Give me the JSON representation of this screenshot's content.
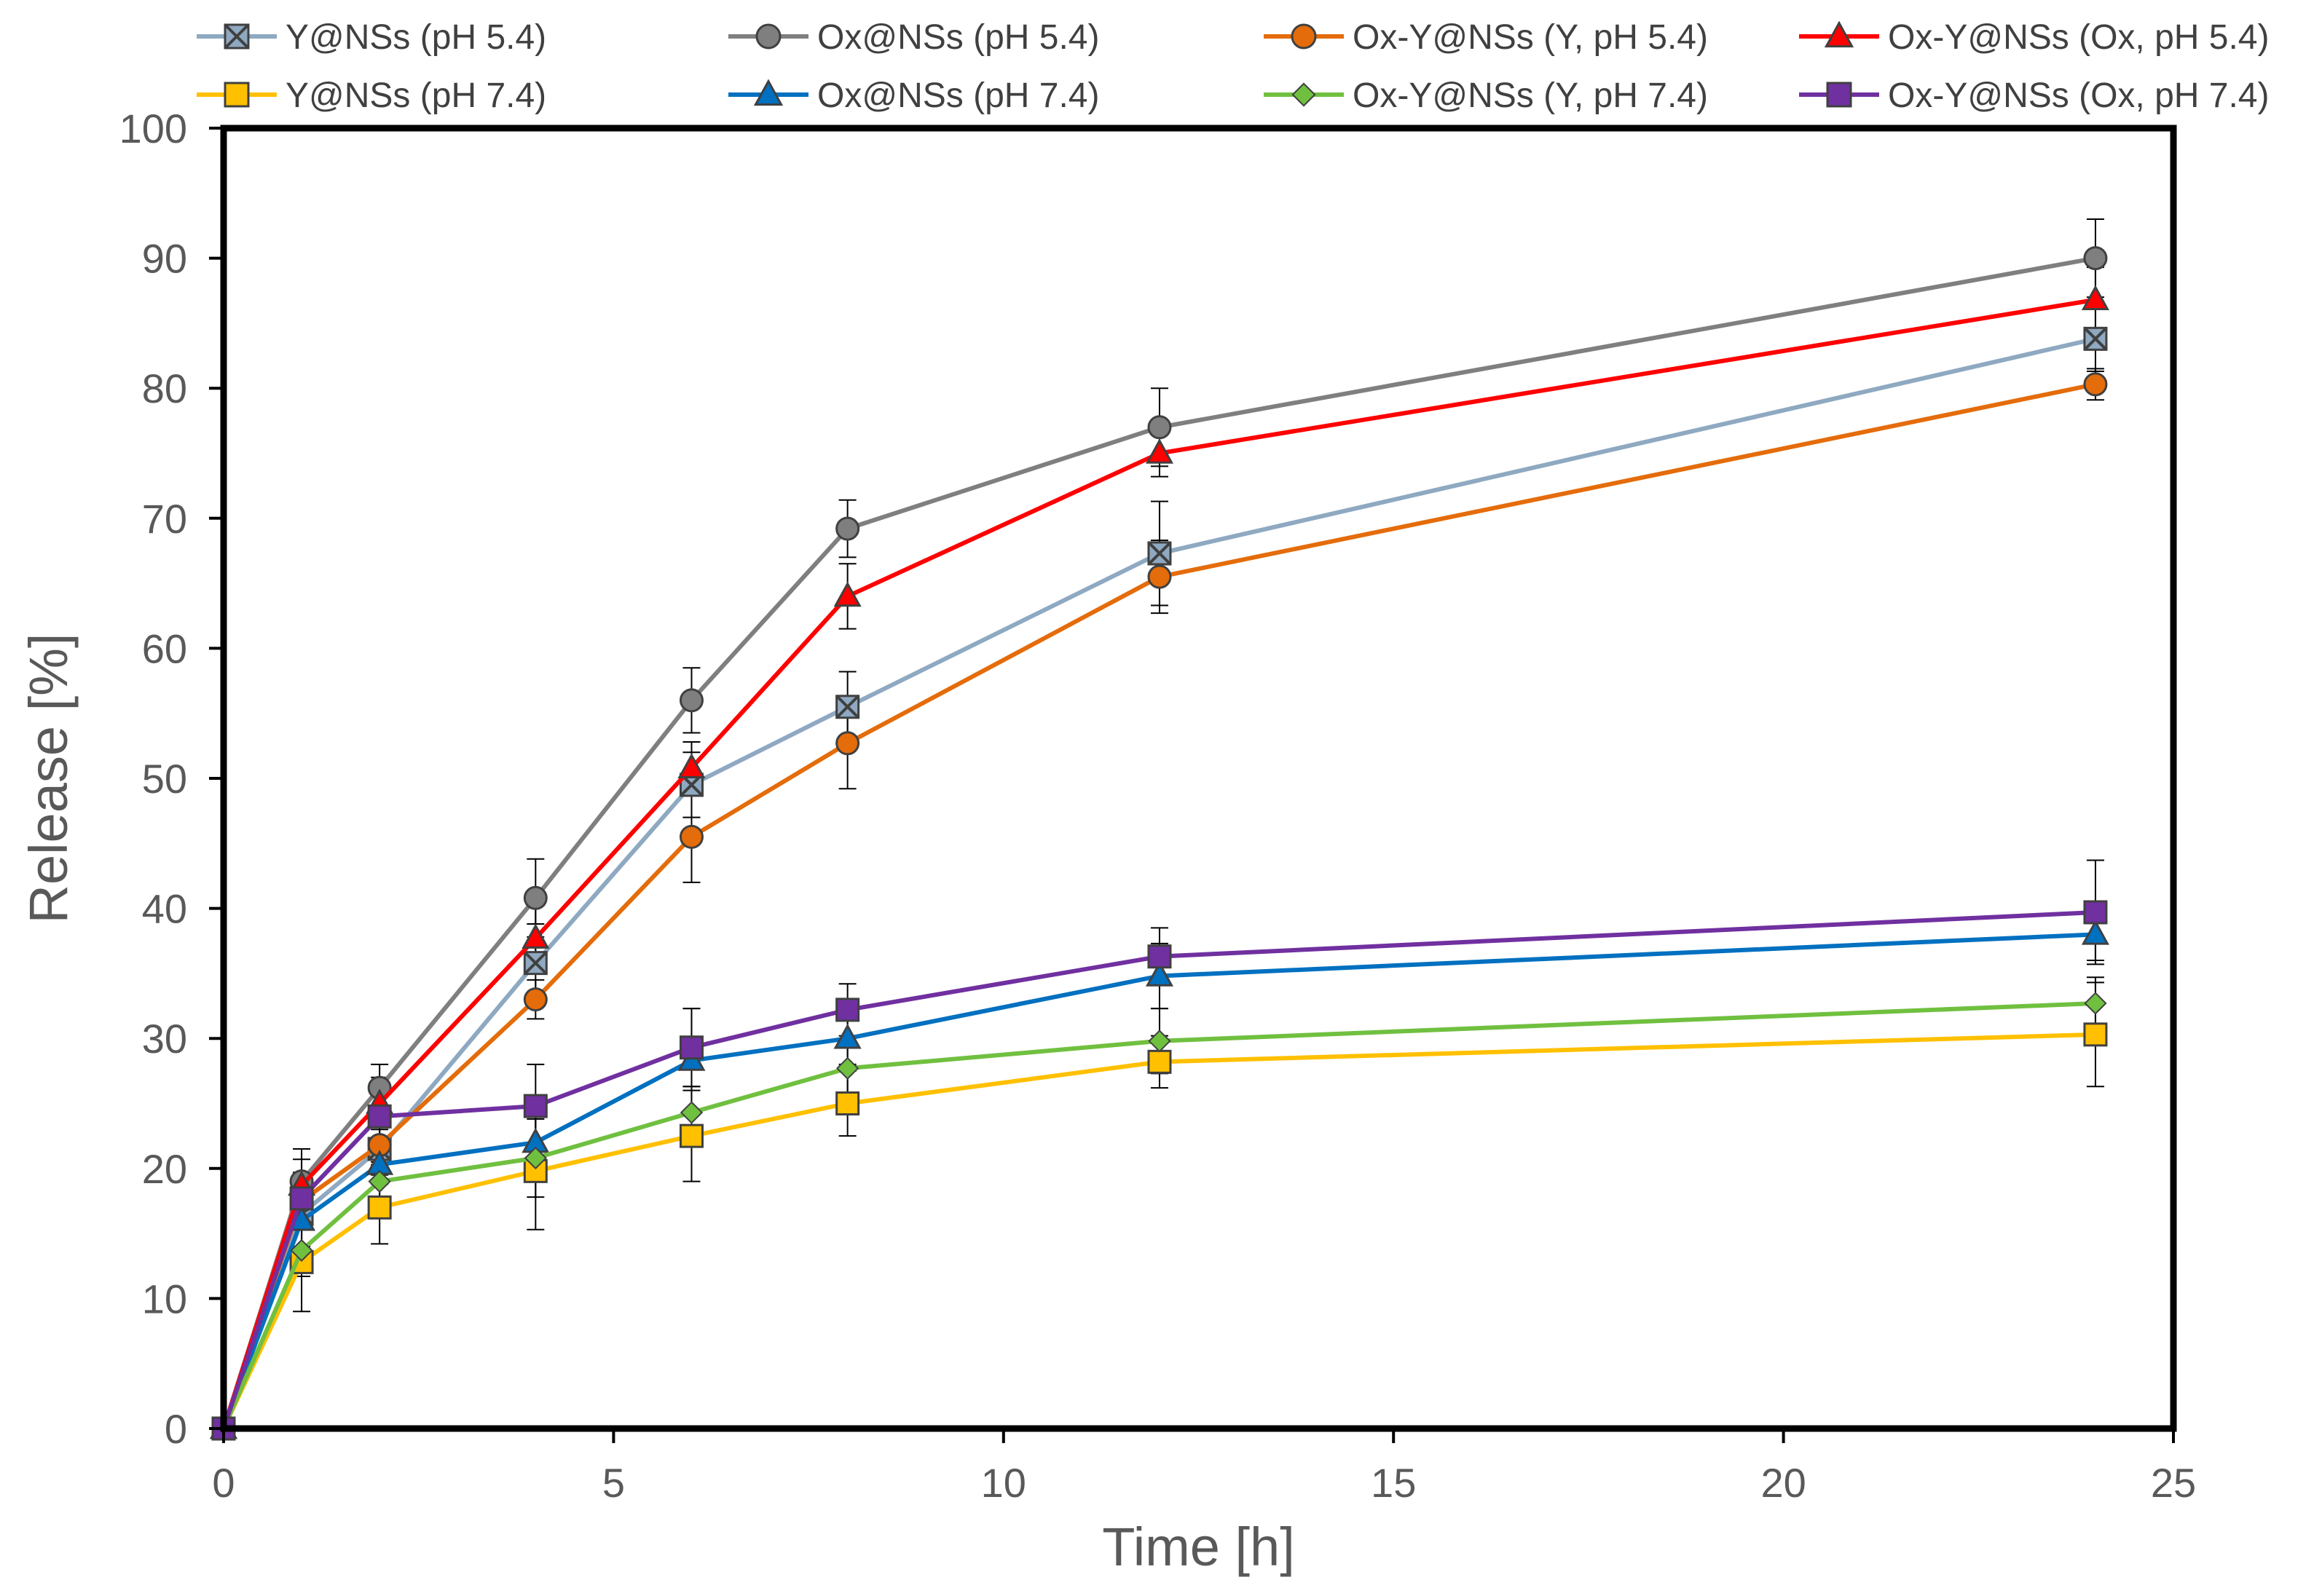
{
  "chart_data": {
    "type": "line",
    "title": "",
    "xlabel": "Time [h]",
    "ylabel": "Release [%]",
    "xlim": [
      0,
      25
    ],
    "ylim": [
      0,
      100
    ],
    "xticks": [
      0,
      5,
      10,
      15,
      20,
      25
    ],
    "yticks": [
      0,
      10,
      20,
      30,
      40,
      50,
      60,
      70,
      80,
      90,
      100
    ],
    "xtick_labels": [
      "0",
      "5",
      "10",
      "15",
      "20",
      "25"
    ],
    "ytick_labels": [
      "0",
      "10",
      "20",
      "30",
      "40",
      "50",
      "60",
      "70",
      "80",
      "90",
      "100"
    ],
    "grid": false,
    "legend_placement": "top",
    "x": [
      0,
      1,
      2,
      4,
      6,
      8,
      12,
      24
    ],
    "series": [
      {
        "name": "Y@NSs (pH 5.4)",
        "color": "#8EA9C1",
        "marker": "x-square",
        "values": [
          0,
          16.5,
          21.5,
          35.8,
          49.5,
          55.5,
          67.3,
          83.8
        ],
        "errors": [
          0,
          2.5,
          2.0,
          3.0,
          2.5,
          2.7,
          4.0,
          2.5
        ]
      },
      {
        "name": "Ox@NSs (pH 5.4)",
        "color": "#7F7F7F",
        "marker": "circle",
        "values": [
          0,
          19.0,
          26.2,
          40.8,
          56.0,
          69.2,
          77.0,
          90.0
        ],
        "errors": [
          0,
          2.5,
          1.8,
          3.0,
          2.5,
          2.2,
          3.0,
          3.0
        ]
      },
      {
        "name": "Ox-Y@NSs (Y, pH 5.4)",
        "color": "#E46C0A",
        "marker": "circle",
        "values": [
          0,
          17.5,
          21.8,
          33.0,
          45.5,
          52.7,
          65.5,
          80.3
        ],
        "errors": [
          0,
          2.0,
          1.5,
          1.5,
          3.5,
          3.5,
          2.8,
          1.2
        ]
      },
      {
        "name": "Ox-Y@NSs (Ox, pH 5.4)",
        "color": "#FF0000",
        "marker": "triangle",
        "values": [
          0,
          18.7,
          25.0,
          37.7,
          50.8,
          64.0,
          75.0,
          86.8
        ],
        "errors": [
          0,
          2.0,
          2.0,
          2.5,
          2.0,
          2.5,
          1.8,
          2.5
        ]
      },
      {
        "name": "Y@NSs (pH 7.4)",
        "color": "#FFC000",
        "marker": "square",
        "values": [
          0,
          12.8,
          17.0,
          19.8,
          22.5,
          25.0,
          28.2,
          30.3
        ],
        "errors": [
          0,
          3.8,
          2.8,
          4.5,
          3.5,
          2.5,
          2.0,
          4.0
        ]
      },
      {
        "name": "Ox@NSs (pH 7.4)",
        "color": "#0070C0",
        "marker": "triangle",
        "values": [
          0,
          16.0,
          20.3,
          22.0,
          28.3,
          30.0,
          34.8,
          38.0
        ],
        "errors": [
          0,
          2.0,
          1.5,
          2.0,
          4.0,
          2.0,
          2.5,
          2.0
        ]
      },
      {
        "name": "Ox-Y@NSs (Y, pH 7.4)",
        "color": "#70C040",
        "marker": "diamond",
        "values": [
          0,
          13.7,
          19.0,
          20.8,
          24.3,
          27.7,
          29.8,
          32.7
        ],
        "errors": [
          0,
          2.0,
          1.5,
          3.0,
          2.0,
          2.0,
          2.5,
          2.0
        ]
      },
      {
        "name": "Ox-Y@NSs (Ox, pH 7.4)",
        "color": "#7030A0",
        "marker": "square",
        "values": [
          0,
          17.7,
          24.0,
          24.8,
          29.3,
          32.2,
          36.3,
          39.7
        ],
        "errors": [
          0,
          2.0,
          2.0,
          3.2,
          3.0,
          2.0,
          2.2,
          4.0
        ]
      }
    ]
  }
}
